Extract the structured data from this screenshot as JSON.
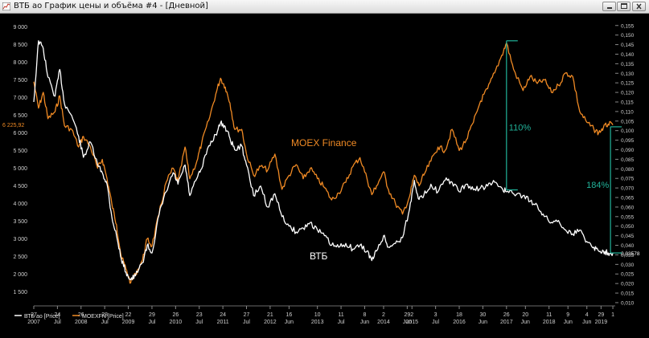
{
  "window": {
    "title": "ВТБ ао График цены и объёма #4 - [Дневной]",
    "app_icon": "chart-app-icon",
    "buttons": [
      "minimize-icon",
      "maximize-icon",
      "close-icon"
    ]
  },
  "colors": {
    "vtb": "#ffffff",
    "moex": "#f08a24",
    "annotation": "#21b39a",
    "background": "#000000",
    "grid_text": "#d0d0d0"
  },
  "chart_data": {
    "type": "line",
    "title": "",
    "y_left": {
      "ticks": [
        "9 000",
        "8 500",
        "8 000",
        "7 500",
        "7 000",
        "6 500",
        "6 000",
        "5 500",
        "5 000",
        "4 500",
        "4 000",
        "3 500",
        "3 000",
        "2 500",
        "2 000",
        "1 500"
      ],
      "range": [
        1100,
        9150
      ],
      "last_label": "6 225,92"
    },
    "y_right": {
      "ticks": [
        "0,155",
        "0,150",
        "0,145",
        "0,140",
        "0,135",
        "0,130",
        "0,125",
        "0,120",
        "0,115",
        "0,110",
        "0,105",
        "0,100",
        "0,095",
        "0,090",
        "0,085",
        "0,080",
        "0,075",
        "0,070",
        "0,065",
        "0,060",
        "0,055",
        "0,050",
        "0,045",
        "0,040",
        "0,035",
        "0,030",
        "0,025",
        "0,020",
        "0,015",
        "0,010"
      ],
      "range": [
        0.0083,
        0.157
      ],
      "last_label": "0,03578"
    },
    "x_axis": {
      "range": [
        2007.05,
        2019.35
      ],
      "ticks": [
        {
          "x": 2007.05,
          "top": "27",
          "bottom": "2007"
        },
        {
          "x": 2007.55,
          "top": "24",
          "bottom": "Jul"
        },
        {
          "x": 2008.05,
          "top": "26",
          "bottom": "2008"
        },
        {
          "x": 2008.55,
          "top": "28",
          "bottom": "Jul"
        },
        {
          "x": 2009.05,
          "top": "22",
          "bottom": "2009"
        },
        {
          "x": 2009.55,
          "top": "29",
          "bottom": "Jul"
        },
        {
          "x": 2010.05,
          "top": "26",
          "bottom": "2010"
        },
        {
          "x": 2010.55,
          "top": "23",
          "bottom": "Jul"
        },
        {
          "x": 2011.05,
          "top": "24",
          "bottom": "2011"
        },
        {
          "x": 2011.55,
          "top": "27",
          "bottom": "Jul"
        },
        {
          "x": 2012.05,
          "top": "21",
          "bottom": "2012"
        },
        {
          "x": 2012.45,
          "top": "16",
          "bottom": "Jun"
        },
        {
          "x": 2013.05,
          "top": "10",
          "bottom": "2013"
        },
        {
          "x": 2013.55,
          "top": "11",
          "bottom": "Jul"
        },
        {
          "x": 2014.05,
          "top": "8",
          "bottom": "Jun"
        },
        {
          "x": 2014.45,
          "top": "2",
          "bottom": "2014"
        },
        {
          "x": 2014.95,
          "top": "29",
          "bottom": "Jun"
        },
        {
          "x": 2015.05,
          "top": "2",
          "bottom": "2015"
        },
        {
          "x": 2015.55,
          "top": "3",
          "bottom": "Jul"
        },
        {
          "x": 2016.05,
          "top": "18",
          "bottom": "2016"
        },
        {
          "x": 2016.55,
          "top": "30",
          "bottom": "Jun"
        },
        {
          "x": 2017.05,
          "top": "26",
          "bottom": "2017"
        },
        {
          "x": 2017.45,
          "top": "20",
          "bottom": "Jun"
        },
        {
          "x": 2017.95,
          "top": "11",
          "bottom": "2018"
        },
        {
          "x": 2018.35,
          "top": "9",
          "bottom": "Jun"
        },
        {
          "x": 2018.75,
          "top": "4",
          "bottom": "Jun"
        },
        {
          "x": 2019.05,
          "top": "29",
          "bottom": "2019"
        },
        {
          "x": 2019.3,
          "top": "1",
          "bottom": ""
        }
      ]
    },
    "legend": {
      "placement": "bottom-left",
      "entries": [
        "ВТБ ао [Price]",
        "MOEXFN [Price]"
      ]
    },
    "labels": {
      "moex": "MOEX Finance",
      "vtb": "ВТБ"
    },
    "annotations": [
      {
        "label": "110%",
        "x": 2017.05,
        "from": 0.069,
        "to": 0.147,
        "label_y": 0.1
      },
      {
        "label": "184%",
        "x": 2019.25,
        "from": 0.036,
        "to": 0.102,
        "label_y": 0.07
      }
    ],
    "series": [
      {
        "name": "ВТБ ао [Price]",
        "axis": "right",
        "points": [
          [
            2007.05,
            0.115
          ],
          [
            2007.15,
            0.147
          ],
          [
            2007.25,
            0.143
          ],
          [
            2007.35,
            0.128
          ],
          [
            2007.5,
            0.118
          ],
          [
            2007.6,
            0.132
          ],
          [
            2007.7,
            0.114
          ],
          [
            2007.85,
            0.108
          ],
          [
            2008.0,
            0.097
          ],
          [
            2008.1,
            0.086
          ],
          [
            2008.25,
            0.094
          ],
          [
            2008.4,
            0.082
          ],
          [
            2008.5,
            0.078
          ],
          [
            2008.6,
            0.072
          ],
          [
            2008.7,
            0.055
          ],
          [
            2008.8,
            0.045
          ],
          [
            2008.9,
            0.033
          ],
          [
            2009.0,
            0.026
          ],
          [
            2009.1,
            0.022
          ],
          [
            2009.2,
            0.024
          ],
          [
            2009.35,
            0.031
          ],
          [
            2009.45,
            0.04
          ],
          [
            2009.55,
            0.036
          ],
          [
            2009.7,
            0.056
          ],
          [
            2009.85,
            0.068
          ],
          [
            2010.0,
            0.078
          ],
          [
            2010.1,
            0.072
          ],
          [
            2010.25,
            0.082
          ],
          [
            2010.35,
            0.066
          ],
          [
            2010.5,
            0.075
          ],
          [
            2010.6,
            0.08
          ],
          [
            2010.75,
            0.092
          ],
          [
            2010.9,
            0.098
          ],
          [
            2011.0,
            0.104
          ],
          [
            2011.1,
            0.102
          ],
          [
            2011.2,
            0.096
          ],
          [
            2011.3,
            0.09
          ],
          [
            2011.45,
            0.092
          ],
          [
            2011.55,
            0.082
          ],
          [
            2011.7,
            0.066
          ],
          [
            2011.85,
            0.071
          ],
          [
            2012.0,
            0.06
          ],
          [
            2012.15,
            0.067
          ],
          [
            2012.3,
            0.055
          ],
          [
            2012.45,
            0.05
          ],
          [
            2012.6,
            0.047
          ],
          [
            2012.75,
            0.049
          ],
          [
            2012.9,
            0.052
          ],
          [
            2013.05,
            0.048
          ],
          [
            2013.2,
            0.045
          ],
          [
            2013.35,
            0.04
          ],
          [
            2013.5,
            0.039
          ],
          [
            2013.65,
            0.041
          ],
          [
            2013.8,
            0.038
          ],
          [
            2013.95,
            0.04
          ],
          [
            2014.1,
            0.037
          ],
          [
            2014.2,
            0.032
          ],
          [
            2014.3,
            0.037
          ],
          [
            2014.45,
            0.045
          ],
          [
            2014.55,
            0.039
          ],
          [
            2014.7,
            0.041
          ],
          [
            2014.85,
            0.044
          ],
          [
            2015.0,
            0.059
          ],
          [
            2015.1,
            0.074
          ],
          [
            2015.2,
            0.064
          ],
          [
            2015.3,
            0.066
          ],
          [
            2015.45,
            0.072
          ],
          [
            2015.6,
            0.068
          ],
          [
            2015.75,
            0.074
          ],
          [
            2015.9,
            0.073
          ],
          [
            2016.05,
            0.068
          ],
          [
            2016.2,
            0.072
          ],
          [
            2016.35,
            0.069
          ],
          [
            2016.5,
            0.07
          ],
          [
            2016.65,
            0.071
          ],
          [
            2016.8,
            0.073
          ],
          [
            2016.95,
            0.07
          ],
          [
            2017.05,
            0.068
          ],
          [
            2017.2,
            0.067
          ],
          [
            2017.4,
            0.066
          ],
          [
            2017.55,
            0.063
          ],
          [
            2017.7,
            0.061
          ],
          [
            2017.85,
            0.055
          ],
          [
            2018.0,
            0.052
          ],
          [
            2018.15,
            0.053
          ],
          [
            2018.3,
            0.048
          ],
          [
            2018.45,
            0.046
          ],
          [
            2018.6,
            0.048
          ],
          [
            2018.75,
            0.042
          ],
          [
            2018.9,
            0.039
          ],
          [
            2019.0,
            0.037
          ],
          [
            2019.1,
            0.037
          ],
          [
            2019.2,
            0.036
          ],
          [
            2019.3,
            0.036
          ]
        ]
      },
      {
        "name": "MOEXFN [Price]",
        "axis": "left",
        "points": [
          [
            2007.05,
            7450
          ],
          [
            2007.15,
            6700
          ],
          [
            2007.25,
            7150
          ],
          [
            2007.35,
            6400
          ],
          [
            2007.5,
            6600
          ],
          [
            2007.6,
            7050
          ],
          [
            2007.7,
            6200
          ],
          [
            2007.85,
            6100
          ],
          [
            2008.0,
            5600
          ],
          [
            2008.1,
            5900
          ],
          [
            2008.25,
            5600
          ],
          [
            2008.4,
            5000
          ],
          [
            2008.5,
            5250
          ],
          [
            2008.6,
            4700
          ],
          [
            2008.7,
            4000
          ],
          [
            2008.8,
            3400
          ],
          [
            2008.9,
            2500
          ],
          [
            2009.0,
            2150
          ],
          [
            2009.1,
            1750
          ],
          [
            2009.2,
            2000
          ],
          [
            2009.35,
            2400
          ],
          [
            2009.45,
            3000
          ],
          [
            2009.55,
            2800
          ],
          [
            2009.7,
            3700
          ],
          [
            2009.85,
            4600
          ],
          [
            2010.0,
            5000
          ],
          [
            2010.1,
            4600
          ],
          [
            2010.25,
            5600
          ],
          [
            2010.35,
            4700
          ],
          [
            2010.5,
            5200
          ],
          [
            2010.6,
            5700
          ],
          [
            2010.75,
            6350
          ],
          [
            2010.9,
            7100
          ],
          [
            2011.0,
            7550
          ],
          [
            2011.1,
            7300
          ],
          [
            2011.2,
            6850
          ],
          [
            2011.3,
            6100
          ],
          [
            2011.45,
            6100
          ],
          [
            2011.55,
            5400
          ],
          [
            2011.7,
            4800
          ],
          [
            2011.85,
            5050
          ],
          [
            2012.0,
            4950
          ],
          [
            2012.15,
            5400
          ],
          [
            2012.3,
            4400
          ],
          [
            2012.45,
            4800
          ],
          [
            2012.6,
            5100
          ],
          [
            2012.75,
            4700
          ],
          [
            2012.9,
            5000
          ],
          [
            2013.05,
            4700
          ],
          [
            2013.2,
            4450
          ],
          [
            2013.35,
            4100
          ],
          [
            2013.5,
            4300
          ],
          [
            2013.65,
            4600
          ],
          [
            2013.8,
            5050
          ],
          [
            2013.95,
            5300
          ],
          [
            2014.1,
            4700
          ],
          [
            2014.2,
            4250
          ],
          [
            2014.3,
            4500
          ],
          [
            2014.45,
            4900
          ],
          [
            2014.55,
            4400
          ],
          [
            2014.7,
            4000
          ],
          [
            2014.85,
            3700
          ],
          [
            2015.0,
            4200
          ],
          [
            2015.1,
            4800
          ],
          [
            2015.2,
            4500
          ],
          [
            2015.3,
            4800
          ],
          [
            2015.45,
            5200
          ],
          [
            2015.6,
            5600
          ],
          [
            2015.75,
            5500
          ],
          [
            2015.9,
            6100
          ],
          [
            2016.05,
            5500
          ],
          [
            2016.2,
            5800
          ],
          [
            2016.35,
            6300
          ],
          [
            2016.5,
            6900
          ],
          [
            2016.65,
            7250
          ],
          [
            2016.8,
            7700
          ],
          [
            2016.95,
            8200
          ],
          [
            2017.05,
            8550
          ],
          [
            2017.2,
            7800
          ],
          [
            2017.4,
            7200
          ],
          [
            2017.55,
            7600
          ],
          [
            2017.7,
            7400
          ],
          [
            2017.85,
            7500
          ],
          [
            2018.0,
            7150
          ],
          [
            2018.15,
            7350
          ],
          [
            2018.3,
            7700
          ],
          [
            2018.45,
            7600
          ],
          [
            2018.6,
            6600
          ],
          [
            2018.75,
            6300
          ],
          [
            2018.9,
            6100
          ],
          [
            2019.0,
            6000
          ],
          [
            2019.1,
            6150
          ],
          [
            2019.2,
            6250
          ],
          [
            2019.3,
            6226
          ]
        ]
      }
    ]
  }
}
